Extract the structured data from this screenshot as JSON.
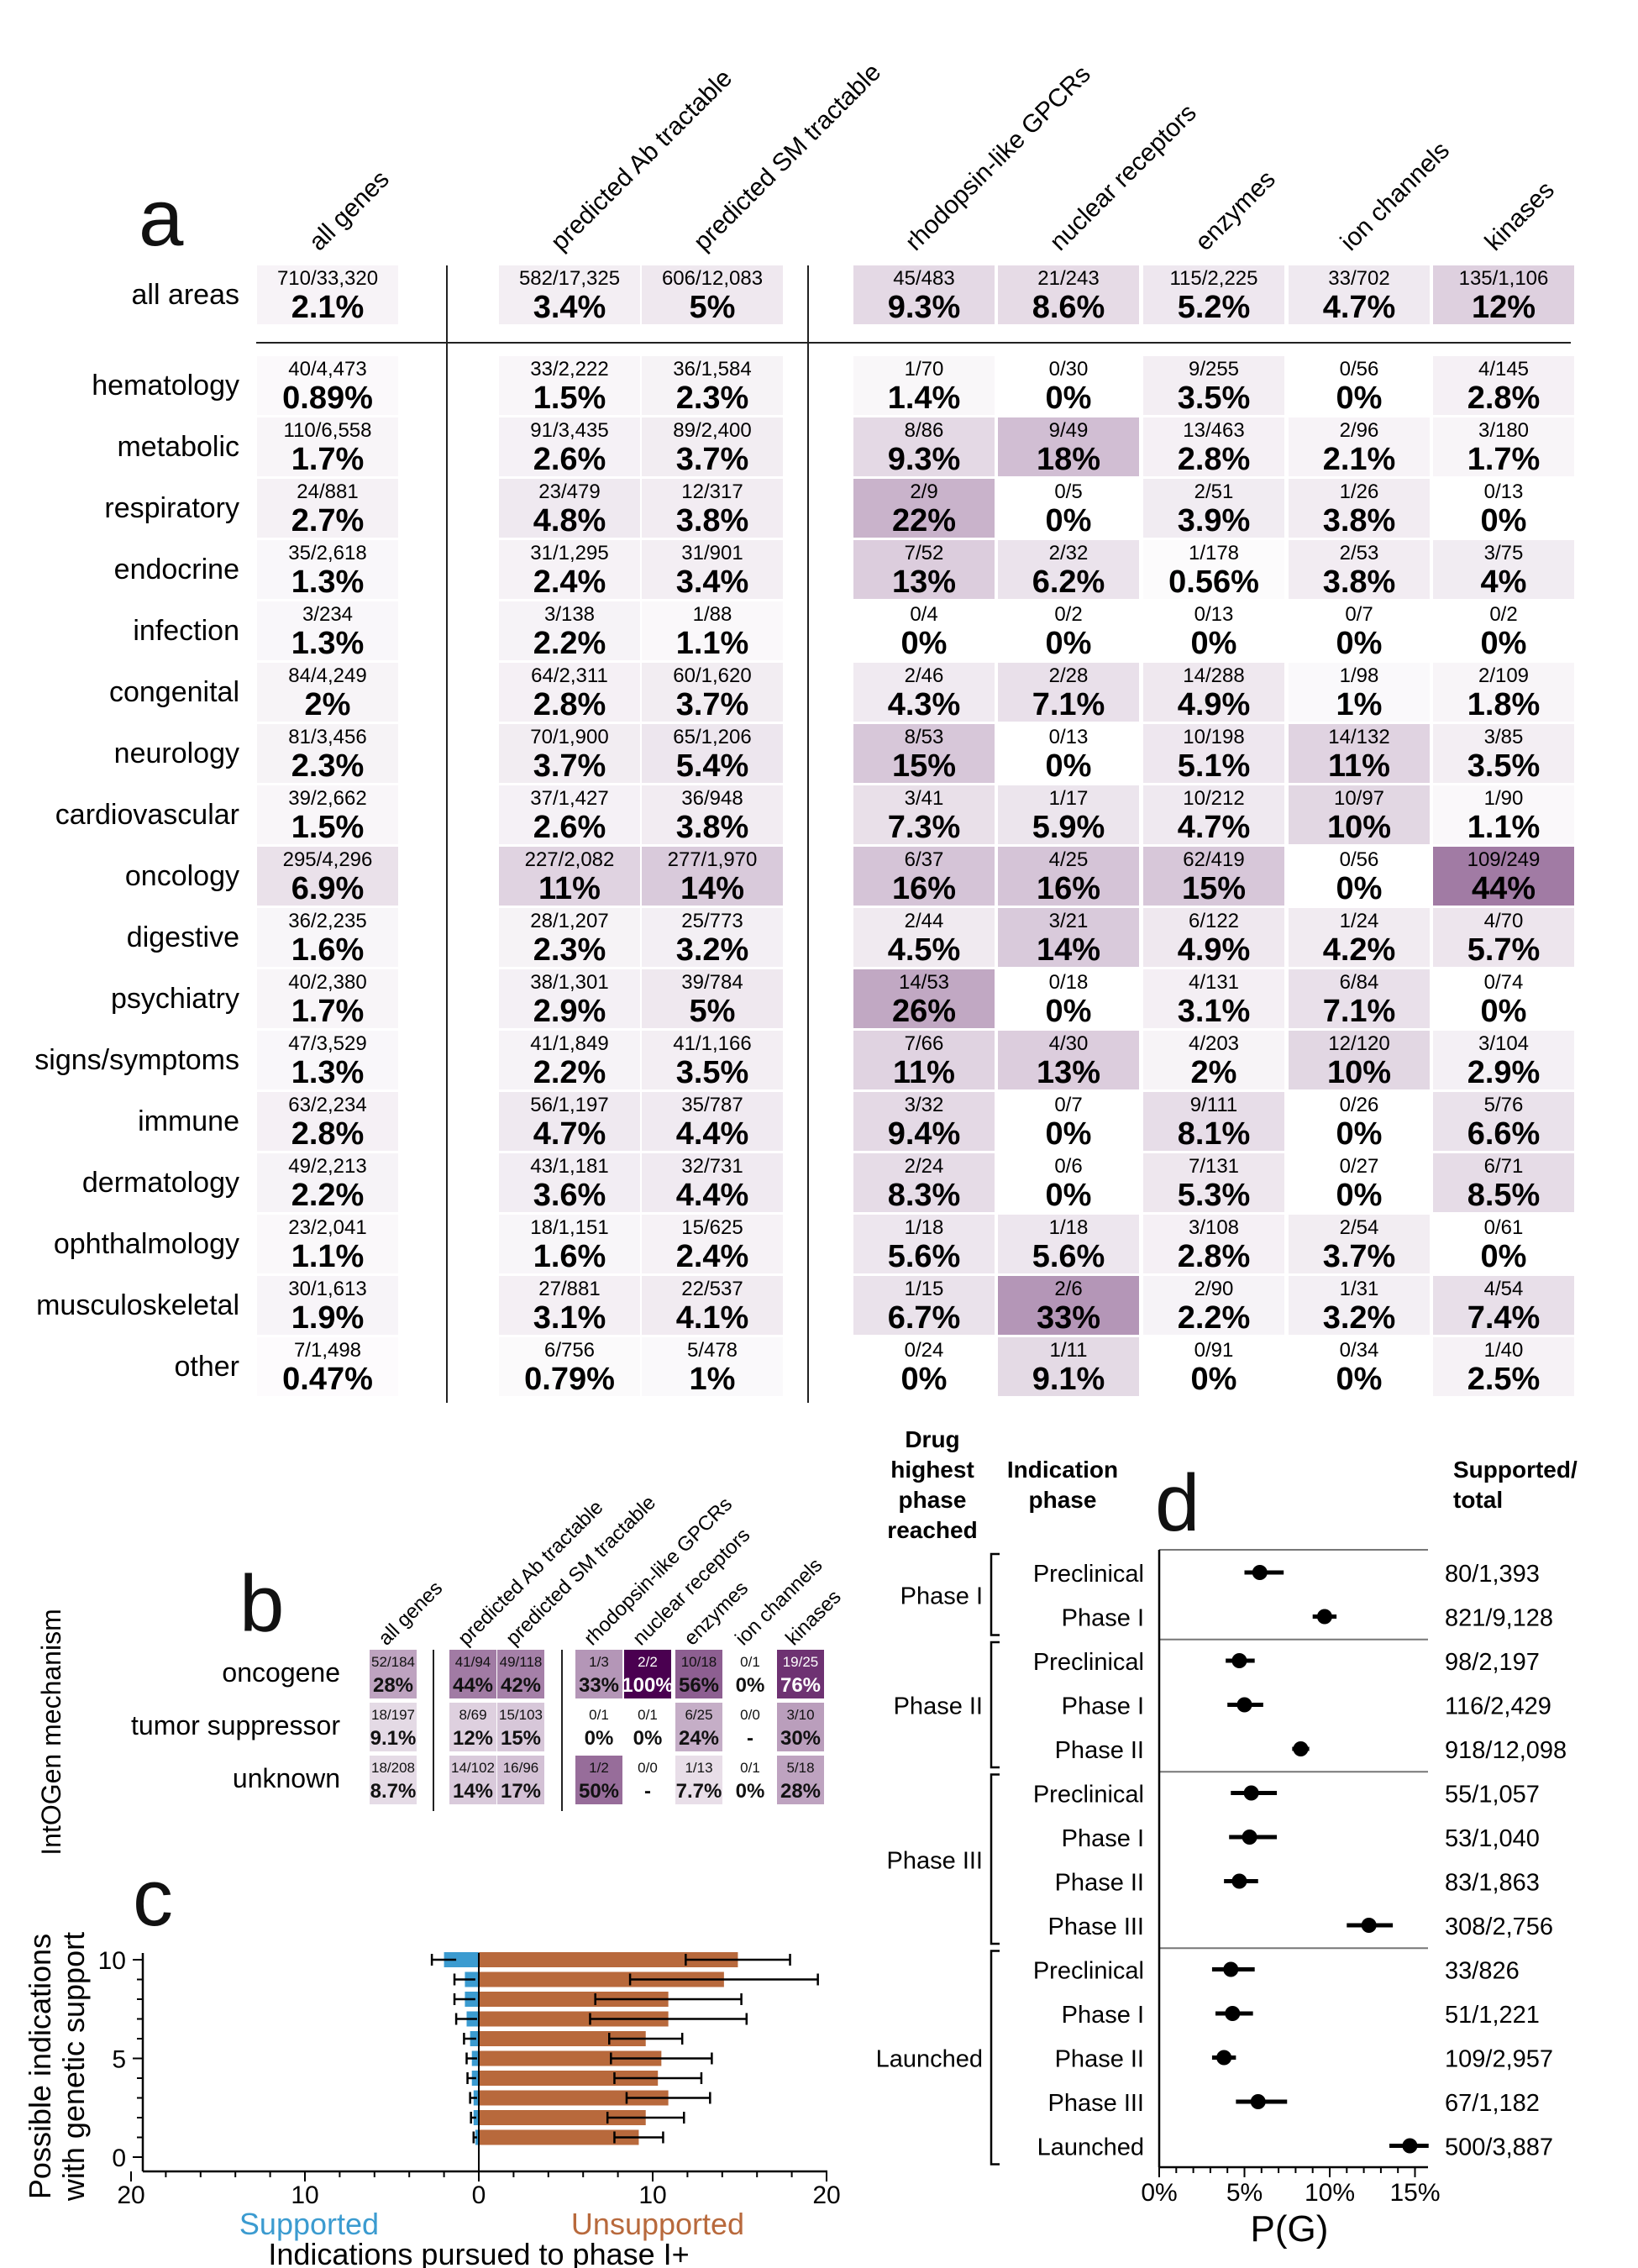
{
  "panel_labels": {
    "a": "a",
    "b": "b",
    "c": "c",
    "d": "d"
  },
  "colors": {
    "heat_low": "#ffffff",
    "heat_high": "#4a0050",
    "supported": "#3b9bd0",
    "unsupported": "#b8693c",
    "line": "#222222"
  },
  "chart_data": [
    {
      "panel": "a",
      "type": "heatmap",
      "col_labels": [
        "all genes",
        "predicted Ab tractable",
        "predicted SM tractable",
        "rhodopsin-like GPCRs",
        "nuclear receptors",
        "enzymes",
        "ion channels",
        "kinases"
      ],
      "summary_row": {
        "name": "all areas",
        "cells": [
          [
            "710/33,320",
            "2.1%"
          ],
          [
            "582/17,325",
            "3.4%"
          ],
          [
            "606/12,083",
            "5%"
          ],
          [
            "45/483",
            "9.3%"
          ],
          [
            "21/243",
            "8.6%"
          ],
          [
            "115/2,225",
            "5.2%"
          ],
          [
            "33/702",
            "4.7%"
          ],
          [
            "135/1,106",
            "12%"
          ]
        ]
      },
      "rows": [
        {
          "name": "hematology",
          "cells": [
            [
              "40/4,473",
              "0.89%"
            ],
            [
              "33/2,222",
              "1.5%"
            ],
            [
              "36/1,584",
              "2.3%"
            ],
            [
              "1/70",
              "1.4%"
            ],
            [
              "0/30",
              "0%"
            ],
            [
              "9/255",
              "3.5%"
            ],
            [
              "0/56",
              "0%"
            ],
            [
              "4/145",
              "2.8%"
            ]
          ]
        },
        {
          "name": "metabolic",
          "cells": [
            [
              "110/6,558",
              "1.7%"
            ],
            [
              "91/3,435",
              "2.6%"
            ],
            [
              "89/2,400",
              "3.7%"
            ],
            [
              "8/86",
              "9.3%"
            ],
            [
              "9/49",
              "18%"
            ],
            [
              "13/463",
              "2.8%"
            ],
            [
              "2/96",
              "2.1%"
            ],
            [
              "3/180",
              "1.7%"
            ]
          ]
        },
        {
          "name": "respiratory",
          "cells": [
            [
              "24/881",
              "2.7%"
            ],
            [
              "23/479",
              "4.8%"
            ],
            [
              "12/317",
              "3.8%"
            ],
            [
              "2/9",
              "22%"
            ],
            [
              "0/5",
              "0%"
            ],
            [
              "2/51",
              "3.9%"
            ],
            [
              "1/26",
              "3.8%"
            ],
            [
              "0/13",
              "0%"
            ]
          ]
        },
        {
          "name": "endocrine",
          "cells": [
            [
              "35/2,618",
              "1.3%"
            ],
            [
              "31/1,295",
              "2.4%"
            ],
            [
              "31/901",
              "3.4%"
            ],
            [
              "7/52",
              "13%"
            ],
            [
              "2/32",
              "6.2%"
            ],
            [
              "1/178",
              "0.56%"
            ],
            [
              "2/53",
              "3.8%"
            ],
            [
              "3/75",
              "4%"
            ]
          ]
        },
        {
          "name": "infection",
          "cells": [
            [
              "3/234",
              "1.3%"
            ],
            [
              "3/138",
              "2.2%"
            ],
            [
              "1/88",
              "1.1%"
            ],
            [
              "0/4",
              "0%"
            ],
            [
              "0/2",
              "0%"
            ],
            [
              "0/13",
              "0%"
            ],
            [
              "0/7",
              "0%"
            ],
            [
              "0/2",
              "0%"
            ]
          ]
        },
        {
          "name": "congenital",
          "cells": [
            [
              "84/4,249",
              "2%"
            ],
            [
              "64/2,311",
              "2.8%"
            ],
            [
              "60/1,620",
              "3.7%"
            ],
            [
              "2/46",
              "4.3%"
            ],
            [
              "2/28",
              "7.1%"
            ],
            [
              "14/288",
              "4.9%"
            ],
            [
              "1/98",
              "1%"
            ],
            [
              "2/109",
              "1.8%"
            ]
          ]
        },
        {
          "name": "neurology",
          "cells": [
            [
              "81/3,456",
              "2.3%"
            ],
            [
              "70/1,900",
              "3.7%"
            ],
            [
              "65/1,206",
              "5.4%"
            ],
            [
              "8/53",
              "15%"
            ],
            [
              "0/13",
              "0%"
            ],
            [
              "10/198",
              "5.1%"
            ],
            [
              "14/132",
              "11%"
            ],
            [
              "3/85",
              "3.5%"
            ]
          ]
        },
        {
          "name": "cardiovascular",
          "cells": [
            [
              "39/2,662",
              "1.5%"
            ],
            [
              "37/1,427",
              "2.6%"
            ],
            [
              "36/948",
              "3.8%"
            ],
            [
              "3/41",
              "7.3%"
            ],
            [
              "1/17",
              "5.9%"
            ],
            [
              "10/212",
              "4.7%"
            ],
            [
              "10/97",
              "10%"
            ],
            [
              "1/90",
              "1.1%"
            ]
          ]
        },
        {
          "name": "oncology",
          "cells": [
            [
              "295/4,296",
              "6.9%"
            ],
            [
              "227/2,082",
              "11%"
            ],
            [
              "277/1,970",
              "14%"
            ],
            [
              "6/37",
              "16%"
            ],
            [
              "4/25",
              "16%"
            ],
            [
              "62/419",
              "15%"
            ],
            [
              "0/56",
              "0%"
            ],
            [
              "109/249",
              "44%"
            ]
          ]
        },
        {
          "name": "digestive",
          "cells": [
            [
              "36/2,235",
              "1.6%"
            ],
            [
              "28/1,207",
              "2.3%"
            ],
            [
              "25/773",
              "3.2%"
            ],
            [
              "2/44",
              "4.5%"
            ],
            [
              "3/21",
              "14%"
            ],
            [
              "6/122",
              "4.9%"
            ],
            [
              "1/24",
              "4.2%"
            ],
            [
              "4/70",
              "5.7%"
            ]
          ]
        },
        {
          "name": "psychiatry",
          "cells": [
            [
              "40/2,380",
              "1.7%"
            ],
            [
              "38/1,301",
              "2.9%"
            ],
            [
              "39/784",
              "5%"
            ],
            [
              "14/53",
              "26%"
            ],
            [
              "0/18",
              "0%"
            ],
            [
              "4/131",
              "3.1%"
            ],
            [
              "6/84",
              "7.1%"
            ],
            [
              "0/74",
              "0%"
            ]
          ]
        },
        {
          "name": "signs/symptoms",
          "cells": [
            [
              "47/3,529",
              "1.3%"
            ],
            [
              "41/1,849",
              "2.2%"
            ],
            [
              "41/1,166",
              "3.5%"
            ],
            [
              "7/66",
              "11%"
            ],
            [
              "4/30",
              "13%"
            ],
            [
              "4/203",
              "2%"
            ],
            [
              "12/120",
              "10%"
            ],
            [
              "3/104",
              "2.9%"
            ]
          ]
        },
        {
          "name": "immune",
          "cells": [
            [
              "63/2,234",
              "2.8%"
            ],
            [
              "56/1,197",
              "4.7%"
            ],
            [
              "35/787",
              "4.4%"
            ],
            [
              "3/32",
              "9.4%"
            ],
            [
              "0/7",
              "0%"
            ],
            [
              "9/111",
              "8.1%"
            ],
            [
              "0/26",
              "0%"
            ],
            [
              "5/76",
              "6.6%"
            ]
          ]
        },
        {
          "name": "dermatology",
          "cells": [
            [
              "49/2,213",
              "2.2%"
            ],
            [
              "43/1,181",
              "3.6%"
            ],
            [
              "32/731",
              "4.4%"
            ],
            [
              "2/24",
              "8.3%"
            ],
            [
              "0/6",
              "0%"
            ],
            [
              "7/131",
              "5.3%"
            ],
            [
              "0/27",
              "0%"
            ],
            [
              "6/71",
              "8.5%"
            ]
          ]
        },
        {
          "name": "ophthalmology",
          "cells": [
            [
              "23/2,041",
              "1.1%"
            ],
            [
              "18/1,151",
              "1.6%"
            ],
            [
              "15/625",
              "2.4%"
            ],
            [
              "1/18",
              "5.6%"
            ],
            [
              "1/18",
              "5.6%"
            ],
            [
              "3/108",
              "2.8%"
            ],
            [
              "2/54",
              "3.7%"
            ],
            [
              "0/61",
              "0%"
            ]
          ]
        },
        {
          "name": "musculoskeletal",
          "cells": [
            [
              "30/1,613",
              "1.9%"
            ],
            [
              "27/881",
              "3.1%"
            ],
            [
              "22/537",
              "4.1%"
            ],
            [
              "1/15",
              "6.7%"
            ],
            [
              "2/6",
              "33%"
            ],
            [
              "2/90",
              "2.2%"
            ],
            [
              "1/31",
              "3.2%"
            ],
            [
              "4/54",
              "7.4%"
            ]
          ]
        },
        {
          "name": "other",
          "cells": [
            [
              "7/1,498",
              "0.47%"
            ],
            [
              "6/756",
              "0.79%"
            ],
            [
              "5/478",
              "1%"
            ],
            [
              "0/24",
              "0%"
            ],
            [
              "1/11",
              "9.1%"
            ],
            [
              "0/91",
              "0%"
            ],
            [
              "0/34",
              "0%"
            ],
            [
              "1/40",
              "2.5%"
            ]
          ]
        }
      ]
    },
    {
      "panel": "b",
      "type": "heatmap",
      "ylabel": "IntOGen mechanism",
      "col_labels": [
        "all genes",
        "predicted Ab tractable",
        "predicted SM tractable",
        "rhodopsin-like GPCRs",
        "nuclear receptors",
        "enzymes",
        "ion channels",
        "kinases"
      ],
      "rows": [
        {
          "name": "oncogene",
          "cells": [
            [
              "52/184",
              "28%"
            ],
            [
              "41/94",
              "44%"
            ],
            [
              "49/118",
              "42%"
            ],
            [
              "1/3",
              "33%"
            ],
            [
              "2/2",
              "100%"
            ],
            [
              "10/18",
              "56%"
            ],
            [
              "0/1",
              "0%"
            ],
            [
              "19/25",
              "76%"
            ]
          ]
        },
        {
          "name": "tumor suppressor",
          "cells": [
            [
              "18/197",
              "9.1%"
            ],
            [
              "8/69",
              "12%"
            ],
            [
              "15/103",
              "15%"
            ],
            [
              "0/1",
              "0%"
            ],
            [
              "0/1",
              "0%"
            ],
            [
              "6/25",
              "24%"
            ],
            [
              "0/0",
              "-"
            ],
            [
              "3/10",
              "30%"
            ]
          ]
        },
        {
          "name": "unknown",
          "cells": [
            [
              "18/208",
              "8.7%"
            ],
            [
              "14/102",
              "14%"
            ],
            [
              "16/96",
              "17%"
            ],
            [
              "1/2",
              "50%"
            ],
            [
              "0/0",
              "-"
            ],
            [
              "1/13",
              "7.7%"
            ],
            [
              "0/1",
              "0%"
            ],
            [
              "5/18",
              "28%"
            ]
          ]
        }
      ]
    },
    {
      "panel": "c",
      "type": "bar",
      "orientation": "horizontal, diverging",
      "xlabel": "Indications pursued to phase I+",
      "ylabel": "Possible indications with genetic support",
      "left_label": "Supported",
      "right_label": "Unsupported",
      "xticks": [
        "20",
        "10",
        "0",
        "10",
        "20"
      ],
      "yticks": [
        "0",
        "5",
        "10"
      ],
      "xlim": [
        -20,
        20
      ],
      "ylim": [
        0,
        10
      ],
      "categories": [
        1,
        2,
        3,
        4,
        5,
        6,
        7,
        8,
        9,
        10
      ],
      "series": [
        {
          "name": "Supported",
          "values": [
            0.2,
            0.3,
            0.3,
            0.4,
            0.4,
            0.5,
            0.7,
            0.8,
            0.8,
            2.0
          ],
          "err": [
            0.1,
            0.15,
            0.2,
            0.25,
            0.3,
            0.35,
            0.6,
            0.6,
            0.6,
            0.7
          ]
        },
        {
          "name": "Unsupported",
          "values": [
            9.2,
            9.6,
            10.9,
            10.3,
            10.5,
            9.6,
            10.9,
            10.9,
            14.1,
            14.9
          ],
          "err": [
            1.4,
            2.2,
            2.4,
            2.5,
            2.9,
            2.1,
            4.5,
            4.2,
            5.4,
            3.0
          ]
        }
      ]
    },
    {
      "panel": "d",
      "type": "scatter",
      "subtype": "forest plot",
      "xlabel": "P(G)",
      "xticks": [
        "0%",
        "5%",
        "10%",
        "15%"
      ],
      "xlim": [
        0,
        16
      ],
      "col_headers": {
        "drug_phase": "Drug highest phase reached",
        "indication_phase": "Indication phase",
        "counts": "Supported/ total"
      },
      "groups": [
        {
          "name": "Phase I",
          "rows": [
            {
              "label": "Preclinical",
              "est": 5.9,
              "lo": 5.0,
              "hi": 7.3,
              "count": "80/1,393"
            },
            {
              "label": "Phase I",
              "est": 9.7,
              "lo": 9.0,
              "hi": 10.4,
              "count": "821/9,128"
            }
          ]
        },
        {
          "name": "Phase II",
          "rows": [
            {
              "label": "Preclinical",
              "est": 4.7,
              "lo": 3.9,
              "hi": 5.6,
              "count": "98/2,197"
            },
            {
              "label": "Phase I",
              "est": 5.0,
              "lo": 4.0,
              "hi": 6.1,
              "count": "116/2,429"
            },
            {
              "label": "Phase II",
              "est": 8.3,
              "lo": 7.8,
              "hi": 8.8,
              "count": "918/12,098"
            }
          ]
        },
        {
          "name": "Phase III",
          "rows": [
            {
              "label": "Preclinical",
              "est": 5.4,
              "lo": 4.2,
              "hi": 6.9,
              "count": "55/1,057"
            },
            {
              "label": "Phase I",
              "est": 5.3,
              "lo": 4.1,
              "hi": 6.9,
              "count": "53/1,040"
            },
            {
              "label": "Phase II",
              "est": 4.7,
              "lo": 3.8,
              "hi": 5.8,
              "count": "83/1,863"
            },
            {
              "label": "Phase III",
              "est": 12.3,
              "lo": 11.0,
              "hi": 13.7,
              "count": "308/2,756"
            }
          ]
        },
        {
          "name": "Launched",
          "rows": [
            {
              "label": "Preclinical",
              "est": 4.2,
              "lo": 3.1,
              "hi": 5.6,
              "count": "33/826"
            },
            {
              "label": "Phase I",
              "est": 4.3,
              "lo": 3.3,
              "hi": 5.5,
              "count": "51/1,221"
            },
            {
              "label": "Phase II",
              "est": 3.8,
              "lo": 3.1,
              "hi": 4.5,
              "count": "109/2,957"
            },
            {
              "label": "Phase III",
              "est": 5.8,
              "lo": 4.5,
              "hi": 7.5,
              "count": "67/1,182"
            },
            {
              "label": "Launched",
              "est": 14.7,
              "lo": 13.5,
              "hi": 15.8,
              "count": "500/3,887"
            }
          ]
        }
      ]
    }
  ]
}
